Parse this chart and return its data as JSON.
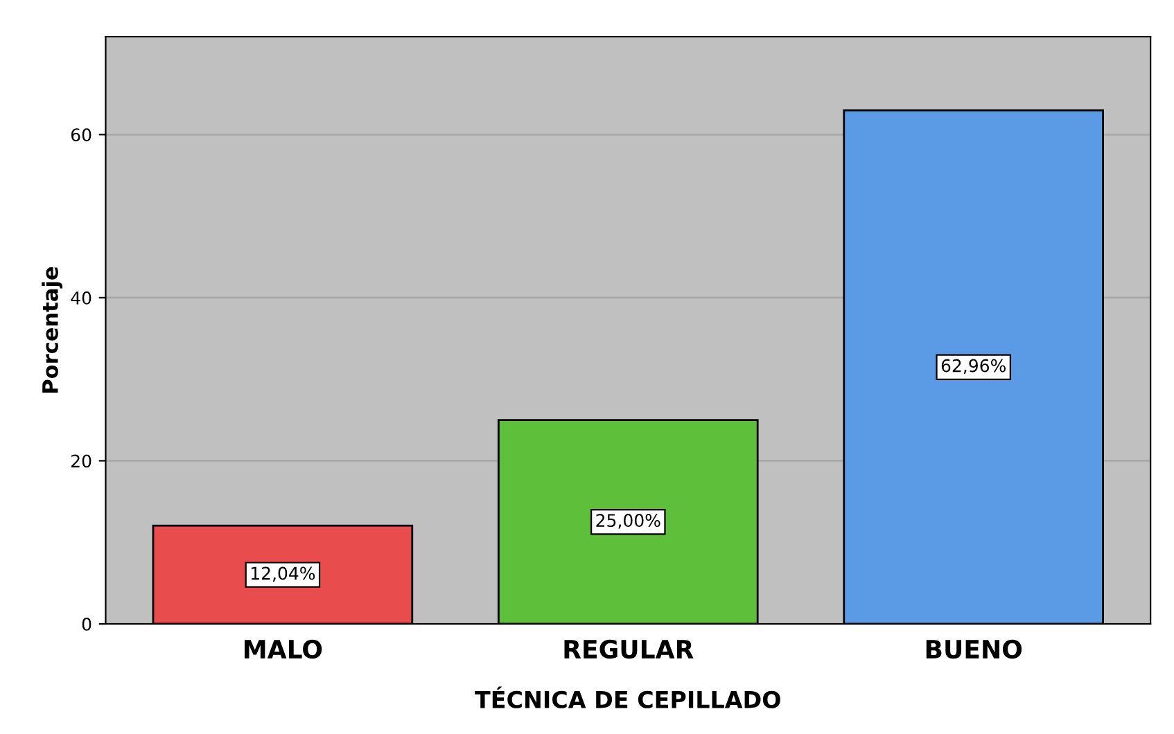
{
  "chart_data": {
    "type": "bar",
    "xlabel": "TÉCNICA DE CEPILLADO",
    "ylabel": "Porcentaje",
    "categories": [
      "MALO",
      "REGULAR",
      "BUENO"
    ],
    "values": [
      12.04,
      25.0,
      62.96
    ],
    "colors": [
      "#e84c4c",
      "#5dbf3a",
      "#5b9be6"
    ],
    "value_labels": [
      "12,04%",
      "25,00%",
      "62,96%"
    ],
    "ylim": [
      0,
      72
    ],
    "yticks": [
      0,
      20,
      40,
      60
    ],
    "grid": "y"
  }
}
